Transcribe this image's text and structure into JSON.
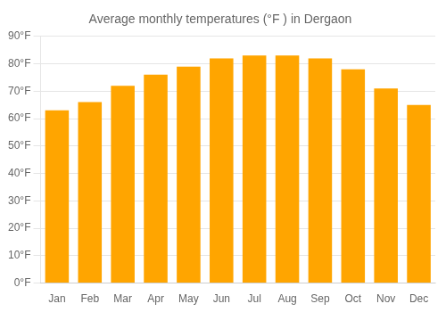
{
  "chart_data": {
    "type": "bar",
    "title": "Average monthly temperatures (°F ) in Dergaon",
    "categories": [
      "Jan",
      "Feb",
      "Mar",
      "Apr",
      "May",
      "Jun",
      "Jul",
      "Aug",
      "Sep",
      "Oct",
      "Nov",
      "Dec"
    ],
    "values": [
      63,
      66,
      72,
      76,
      79,
      82,
      83,
      83,
      82,
      78,
      71,
      65
    ],
    "color": "#FFA500",
    "ylim": [
      0,
      90
    ],
    "yticks": [
      {
        "value": 0,
        "label": "0°F"
      },
      {
        "value": 10,
        "label": "10°F"
      },
      {
        "value": 20,
        "label": "20°F"
      },
      {
        "value": 30,
        "label": "30°F"
      },
      {
        "value": 40,
        "label": "40°F"
      },
      {
        "value": 50,
        "label": "50°F"
      },
      {
        "value": 60,
        "label": "60°F"
      },
      {
        "value": 70,
        "label": "70°F"
      },
      {
        "value": 80,
        "label": "80°F"
      },
      {
        "value": 90,
        "label": "90°F"
      }
    ],
    "grid": true
  }
}
